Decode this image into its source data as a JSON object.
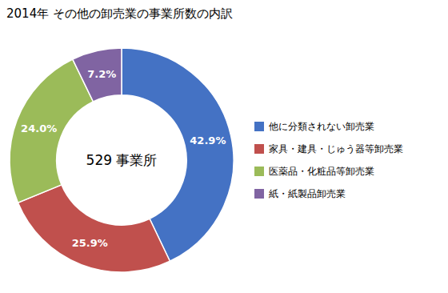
{
  "chart_data": {
    "type": "donut",
    "title": "2014年 その他の卸売業の事業所数の内訳",
    "categories": [
      "他に分類されない卸売業",
      "家具・建具・じゅう器等卸売業",
      "医薬品・化粧品等卸売業",
      "紙・紙製品卸売業"
    ],
    "values": [
      42.9,
      25.9,
      24.0,
      7.2
    ],
    "value_labels": [
      "42.9%",
      "25.9%",
      "24.0%",
      "7.2%"
    ],
    "colors": [
      "#4472C4",
      "#C0504D",
      "#9BBB59",
      "#8064A2"
    ],
    "annotations": [
      "529 事業所"
    ],
    "data_labels": true,
    "legend": "right"
  }
}
